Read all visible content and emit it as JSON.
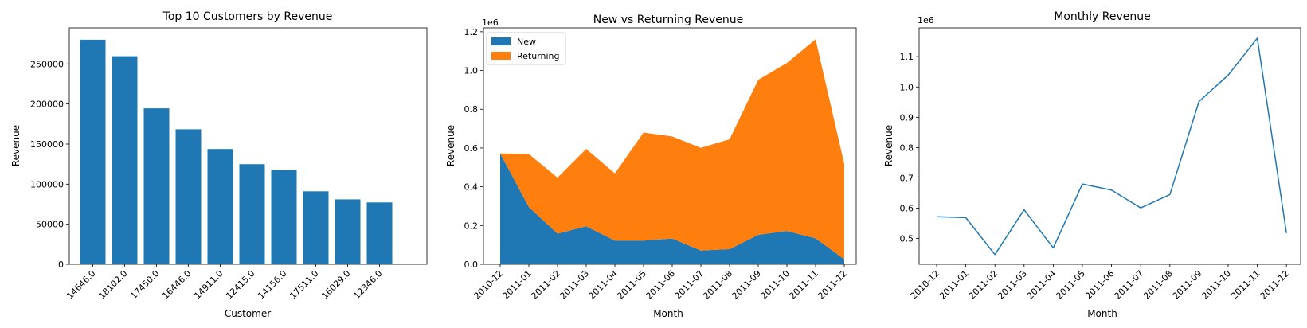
{
  "colors": {
    "blue": "#1f77b4",
    "orange": "#ff7f0e"
  },
  "chart_data": [
    {
      "type": "bar",
      "title": "Top 10 Customers by Revenue",
      "xlabel": "Customer",
      "ylabel": "Revenue",
      "categories": [
        "14646.0",
        "18102.0",
        "17450.0",
        "16446.0",
        "14911.0",
        "12415.0",
        "14156.0",
        "17511.0",
        "16029.0",
        "12346.0"
      ],
      "values": [
        280206,
        259657,
        194551,
        168472,
        143825,
        124914,
        117379,
        91062,
        81024,
        77183
      ],
      "ylim": [
        0,
        295000
      ],
      "yticks": [
        0,
        50000,
        100000,
        150000,
        200000,
        250000
      ],
      "grid": false
    },
    {
      "type": "area",
      "title": "New vs Returning Revenue",
      "xlabel": "Month",
      "ylabel": "Revenue",
      "y_offset_label": "1e6",
      "x": [
        "2010-12",
        "2011-01",
        "2011-02",
        "2011-03",
        "2011-04",
        "2011-05",
        "2011-06",
        "2011-07",
        "2011-08",
        "2011-09",
        "2011-10",
        "2011-11",
        "2011-12"
      ],
      "stacked": true,
      "series": [
        {
          "name": "New",
          "values": [
            0.572,
            0.295,
            0.158,
            0.196,
            0.122,
            0.122,
            0.133,
            0.071,
            0.078,
            0.152,
            0.172,
            0.134,
            0.026
          ]
        },
        {
          "name": "Returning",
          "values": [
            0.0,
            0.274,
            0.289,
            0.399,
            0.347,
            0.558,
            0.527,
            0.53,
            0.567,
            0.8,
            0.867,
            1.027,
            0.492
          ]
        }
      ],
      "ylim": [
        0,
        1.22
      ],
      "yticks": [
        0.0,
        0.2,
        0.4,
        0.6,
        0.8,
        1.0,
        1.2
      ],
      "legend": "top-left",
      "grid": false
    },
    {
      "type": "line",
      "title": "Monthly Revenue",
      "xlabel": "Month",
      "ylabel": "Revenue",
      "y_offset_label": "1e6",
      "x": [
        "2010-12",
        "2011-01",
        "2011-02",
        "2011-03",
        "2011-04",
        "2011-05",
        "2011-06",
        "2011-07",
        "2011-08",
        "2011-09",
        "2011-10",
        "2011-11",
        "2011-12"
      ],
      "values": [
        0.572,
        0.569,
        0.447,
        0.595,
        0.469,
        0.68,
        0.66,
        0.601,
        0.645,
        0.952,
        1.039,
        1.161,
        0.518
      ],
      "ylim": [
        0.415,
        1.195
      ],
      "yticks": [
        0.5,
        0.6,
        0.7,
        0.8,
        0.9,
        1.0,
        1.1
      ],
      "grid": false
    }
  ]
}
